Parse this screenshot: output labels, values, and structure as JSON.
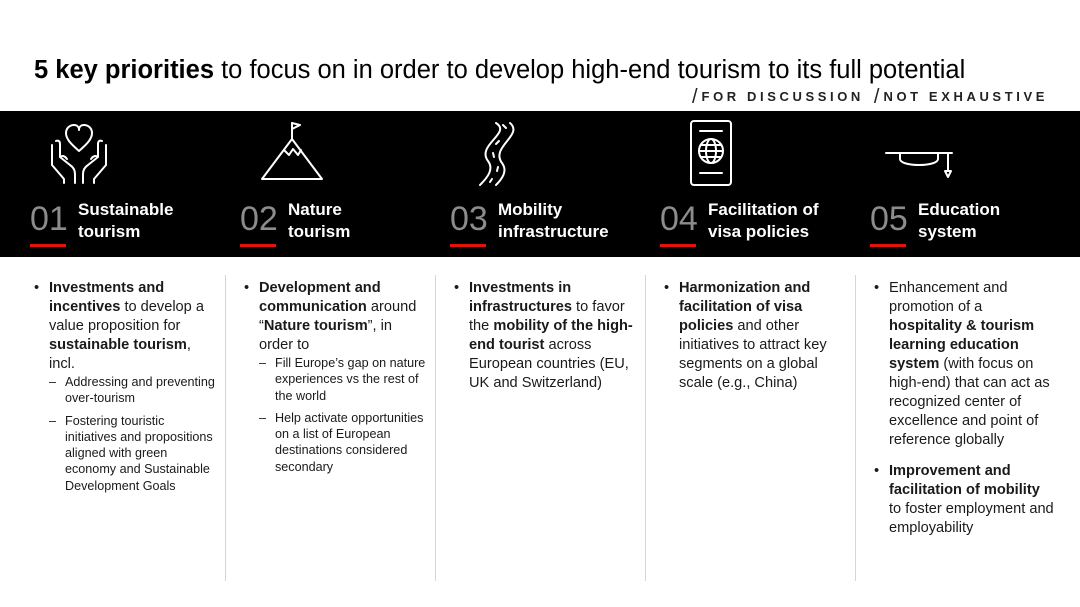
{
  "title": {
    "bold": "5 key priorities",
    "rest": " to focus on in order to develop high-end tourism to its full potential"
  },
  "tags": [
    "FOR DISCUSSION",
    "NOT EXHAUSTIVE"
  ],
  "columns": [
    {
      "number": "01",
      "title_line1": "Sustainable",
      "title_line2": "tourism",
      "icon": "hands-heart-icon",
      "b1": {
        "t1": "Investments and incentives",
        "t2": " to develop a value proposition for ",
        "t3": "sustainable tourism",
        "t4": ", incl."
      },
      "subs": [
        "Addressing and preventing over-tourism",
        "Fostering touristic initiatives and propositions aligned with green economy and Sustainable Development Goals"
      ]
    },
    {
      "number": "02",
      "title_line1": "Nature",
      "title_line2": "tourism",
      "icon": "mountain-flag-icon",
      "b1": {
        "t1": "Development and communication",
        "t2": " around “",
        "t3": "Nature tourism",
        "t4": "”, in order to"
      },
      "subs": [
        "Fill Europe’s gap on nature experiences vs the rest of the world",
        "Help activate opportunities on a list of European destinations considered secondary"
      ]
    },
    {
      "number": "03",
      "title_line1": "Mobility",
      "title_line2": "infrastructure",
      "icon": "road-icon",
      "b1": {
        "t1": "Investments in infrastructures",
        "t2": " to favor the ",
        "t3": "mobility of the high-end tourist",
        "t4": " across European countries (EU, UK and Switzerland)"
      }
    },
    {
      "number": "04",
      "title_line1": "Facilitation of",
      "title_line2": "visa policies",
      "icon": "passport-icon",
      "b1": {
        "t1": "Harmonization and facilitation of visa policies",
        "t2": " and other initiatives to attract key segments on a global scale (e.g., China)"
      }
    },
    {
      "number": "05",
      "title_line1": "Education",
      "title_line2": "system",
      "icon": "graduation-cap-icon",
      "b1": {
        "t1": "Enhancement and promotion of a ",
        "t2": "hospitality & tourism learning education system",
        "t3": " (with focus on high-end) that can act as recognized center of excellence and point of  reference globally"
      },
      "b2": {
        "t1": "Improvement and facilitation of mobility",
        "t2": " to foster employment and employability"
      }
    }
  ]
}
